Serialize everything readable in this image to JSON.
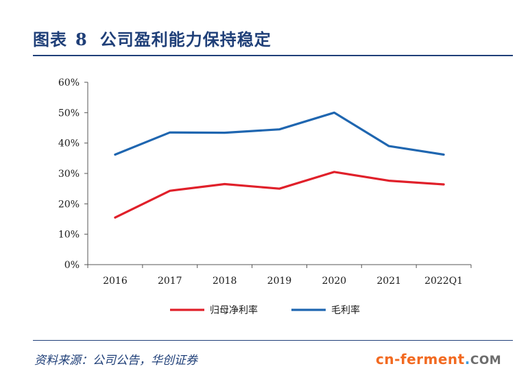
{
  "header": {
    "prefix": "图表",
    "figure_number": "8",
    "title": "公司盈利能力保持稳定"
  },
  "footer": {
    "source": "资料来源：公司公告，华创证券"
  },
  "watermark": {
    "brand": "cn-ferment",
    "dot": ".",
    "tld": "COM"
  },
  "colors": {
    "net_margin": "#e0202a",
    "gross_margin": "#1f66b0",
    "axis": "#555555",
    "brand_blue": "#1f3f78"
  },
  "chart_data": {
    "type": "line",
    "title": "",
    "xlabel": "",
    "ylabel": "",
    "categories": [
      "2016",
      "2017",
      "2018",
      "2019",
      "2020",
      "2021",
      "2022Q1"
    ],
    "ylim": [
      0,
      60
    ],
    "yticks": [
      0,
      10,
      20,
      30,
      40,
      50,
      60
    ],
    "ytick_labels": [
      "0%",
      "10%",
      "20%",
      "30%",
      "40%",
      "50%",
      "60%"
    ],
    "grid": false,
    "legend_position": "bottom",
    "series": [
      {
        "name": "归母净利率",
        "values": [
          15.5,
          24.3,
          26.5,
          25.0,
          30.5,
          27.6,
          26.4
        ]
      },
      {
        "name": "毛利率",
        "values": [
          36.2,
          43.5,
          43.4,
          44.5,
          50.0,
          39.0,
          36.2
        ]
      }
    ]
  }
}
